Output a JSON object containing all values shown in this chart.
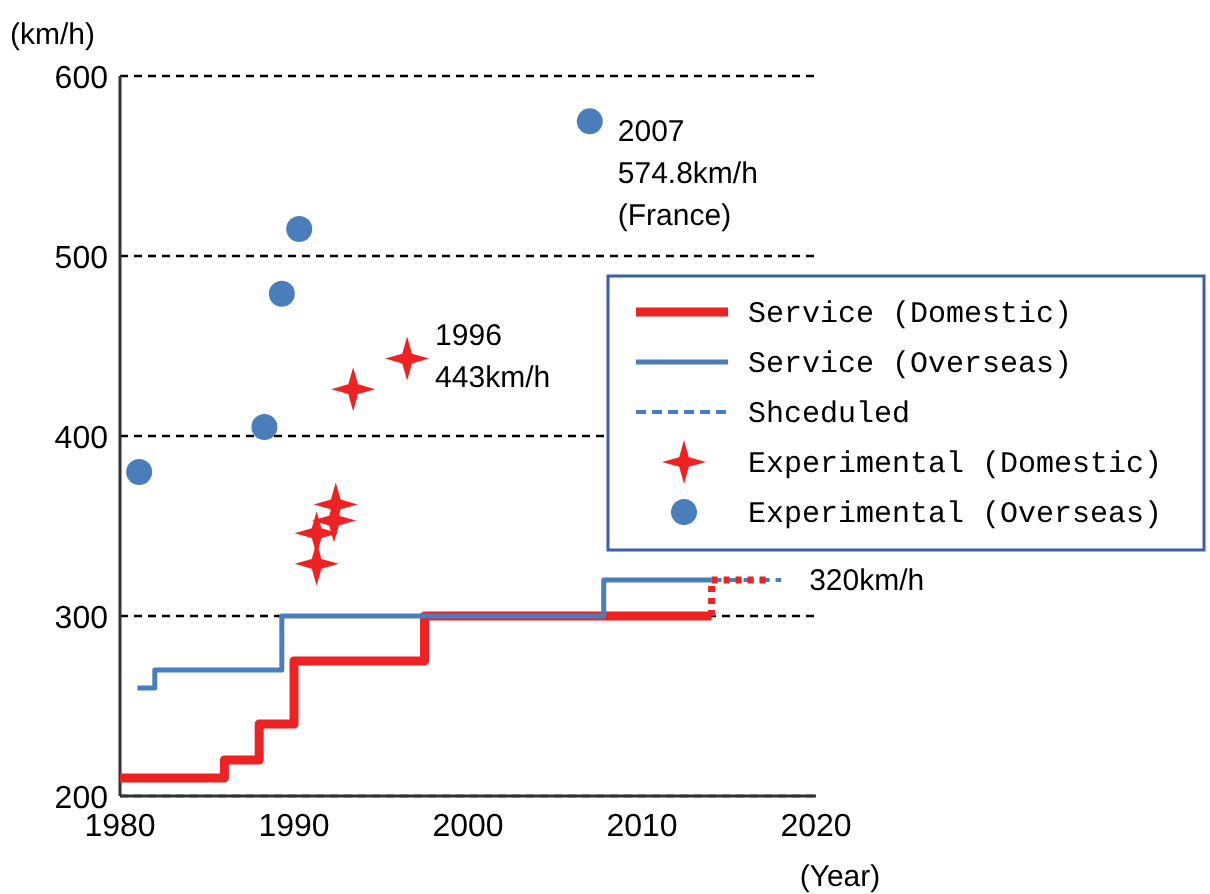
{
  "chart_data": {
    "type": "line",
    "xlabel": "(Year)",
    "ylabel": "(km/h)",
    "xlim": [
      1980,
      2020
    ],
    "ylim": [
      200,
      600
    ],
    "xticks": [
      1980,
      1990,
      2000,
      2010,
      2020
    ],
    "yticks": [
      200,
      300,
      400,
      500,
      600
    ],
    "grid": "y",
    "legend": "right",
    "series": [
      {
        "name": "Service (Domestic)",
        "type": "step",
        "color": "#ee2222",
        "line_style": "solid",
        "x": [
          1980,
          1986,
          1988,
          1990,
          1997.5,
          2014
        ],
        "values": [
          210,
          220,
          240,
          275,
          300,
          300
        ]
      },
      {
        "name": "Service (Overseas)",
        "type": "step",
        "color": "#4a7ebb",
        "line_style": "solid",
        "x": [
          1981,
          1982,
          1989.3,
          2007.8,
          2014
        ],
        "values": [
          260,
          270,
          300,
          320,
          320
        ]
      },
      {
        "name": "Shceduled",
        "color": "#4a7ebb",
        "line_style": "dashed",
        "x": [
          2014,
          2018
        ],
        "values": [
          320,
          320
        ]
      },
      {
        "color": "#ee2222",
        "line_style": "dotted",
        "x": [
          2014,
          2014,
          2017.3
        ],
        "values": [
          300,
          320,
          320
        ]
      },
      {
        "name": "Experimental (Domestic)",
        "type": "scatter",
        "color": "#ee2222",
        "marker": "star",
        "x": [
          1991.3,
          1991.3,
          1992.3,
          1992.4,
          1993.4,
          1996.5
        ],
        "values": [
          329,
          346,
          353,
          362,
          426,
          443
        ]
      },
      {
        "name": "Experimental (Overseas)",
        "type": "scatter",
        "color": "#4a7ebb",
        "marker": "circle",
        "x": [
          1981.1,
          1988.3,
          1989.3,
          1990.3,
          2007
        ],
        "values": [
          380,
          405,
          479,
          515,
          574.8
        ]
      }
    ],
    "annotations": [
      {
        "text": "2007\n574.8km/h\n(France)",
        "x": 2007,
        "y": 574.8
      },
      {
        "text": "1996\n443km/h",
        "x": 1996.5,
        "y": 443
      },
      {
        "text": "320km/h",
        "x": 2018,
        "y": 320
      }
    ]
  }
}
